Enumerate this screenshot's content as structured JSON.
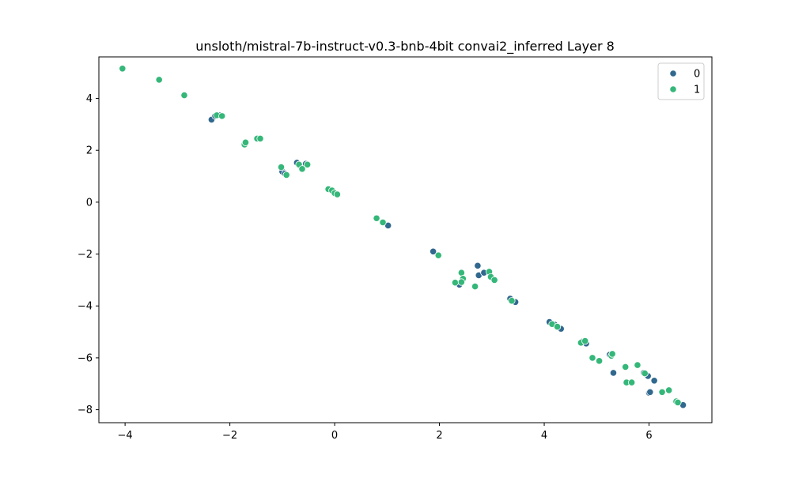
{
  "chart_data": {
    "type": "scatter",
    "title": "unsloth/mistral-7b-instruct-v0.3-bnb-4bit convai2_inferred Layer 8",
    "xlabel": "",
    "ylabel": "",
    "xlim": [
      -4.5,
      7.2
    ],
    "ylim": [
      -8.5,
      5.6
    ],
    "xticks": [
      -4,
      -2,
      0,
      2,
      4,
      6
    ],
    "yticks": [
      -8,
      -6,
      -4,
      -2,
      0,
      2,
      4
    ],
    "grid": false,
    "legend_position": "top-right",
    "series": [
      {
        "name": "0",
        "color": "#31688e",
        "points": [
          [
            -2.35,
            3.18
          ],
          [
            -2.28,
            3.32
          ],
          [
            -2.2,
            3.35
          ],
          [
            -0.72,
            1.52
          ],
          [
            -0.55,
            1.48
          ],
          [
            -1.0,
            1.18
          ],
          [
            -0.95,
            1.1
          ],
          [
            1.02,
            -0.9
          ],
          [
            1.88,
            -1.9
          ],
          [
            2.38,
            -3.18
          ],
          [
            2.73,
            -2.45
          ],
          [
            2.75,
            -2.82
          ],
          [
            2.85,
            -2.72
          ],
          [
            3.35,
            -3.72
          ],
          [
            3.45,
            -3.85
          ],
          [
            4.1,
            -4.62
          ],
          [
            4.2,
            -4.72
          ],
          [
            4.32,
            -4.88
          ],
          [
            4.72,
            -5.38
          ],
          [
            4.8,
            -5.45
          ],
          [
            5.25,
            -5.88
          ],
          [
            5.32,
            -6.58
          ],
          [
            5.9,
            -6.58
          ],
          [
            6.0,
            -7.35
          ],
          [
            5.98,
            -6.7
          ],
          [
            6.1,
            -6.88
          ],
          [
            6.02,
            -7.32
          ],
          [
            6.65,
            -7.82
          ]
        ]
      },
      {
        "name": "1",
        "color": "#35b779",
        "points": [
          [
            -4.05,
            5.15
          ],
          [
            -3.35,
            4.72
          ],
          [
            -2.87,
            4.12
          ],
          [
            -2.25,
            3.35
          ],
          [
            -2.15,
            3.32
          ],
          [
            -1.72,
            2.22
          ],
          [
            -1.7,
            2.3
          ],
          [
            -1.48,
            2.45
          ],
          [
            -1.42,
            2.45
          ],
          [
            -0.68,
            1.45
          ],
          [
            -0.62,
            1.28
          ],
          [
            -0.52,
            1.45
          ],
          [
            -1.02,
            1.35
          ],
          [
            -0.92,
            1.05
          ],
          [
            -0.12,
            0.5
          ],
          [
            -0.05,
            0.45
          ],
          [
            0.0,
            0.35
          ],
          [
            0.05,
            0.3
          ],
          [
            0.8,
            -0.62
          ],
          [
            0.92,
            -0.78
          ],
          [
            1.98,
            -2.05
          ],
          [
            2.3,
            -3.1
          ],
          [
            2.42,
            -2.72
          ],
          [
            2.45,
            -2.95
          ],
          [
            2.42,
            -3.08
          ],
          [
            2.68,
            -3.25
          ],
          [
            2.95,
            -2.68
          ],
          [
            2.98,
            -2.88
          ],
          [
            3.05,
            -3.0
          ],
          [
            3.38,
            -3.8
          ],
          [
            4.15,
            -4.7
          ],
          [
            4.25,
            -4.8
          ],
          [
            4.7,
            -5.42
          ],
          [
            4.78,
            -5.35
          ],
          [
            4.92,
            -6.0
          ],
          [
            5.05,
            -6.12
          ],
          [
            5.28,
            -5.92
          ],
          [
            5.3,
            -5.85
          ],
          [
            5.55,
            -6.35
          ],
          [
            5.57,
            -6.95
          ],
          [
            5.67,
            -6.95
          ],
          [
            5.78,
            -6.28
          ],
          [
            5.92,
            -6.6
          ],
          [
            6.25,
            -7.32
          ],
          [
            6.38,
            -7.25
          ],
          [
            6.52,
            -7.68
          ],
          [
            6.55,
            -7.72
          ]
        ]
      }
    ]
  }
}
